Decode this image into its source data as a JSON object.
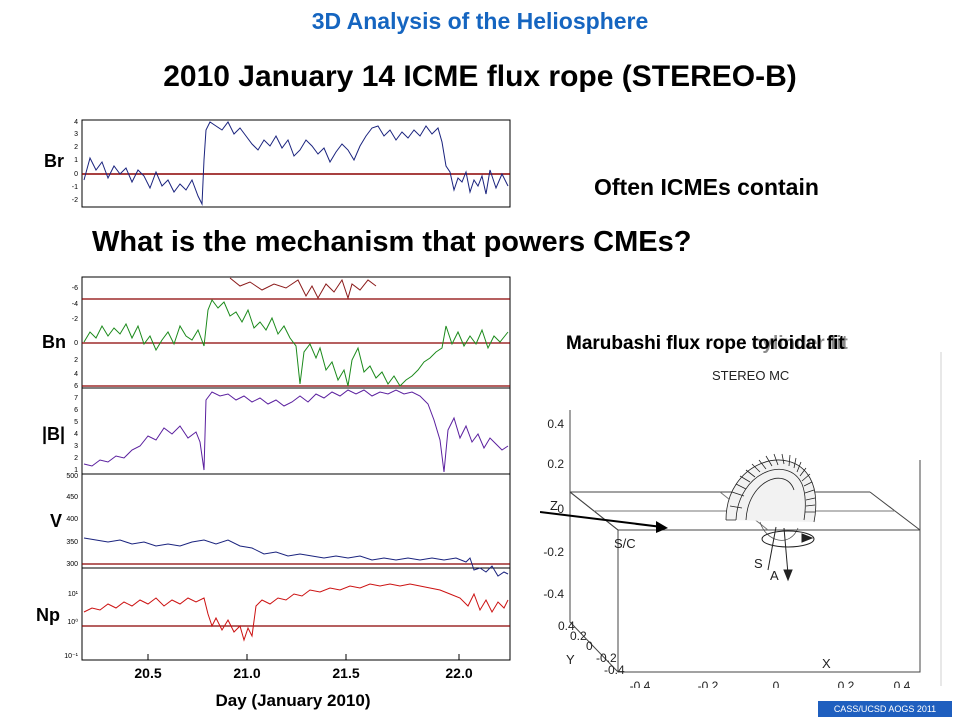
{
  "header": "3D Analysis of the Heliosphere",
  "title": "2010 January 14 ICME flux rope (STEREO-B)",
  "question": "What is the mechanism that powers CMEs?",
  "overlay_text": "Often ICMEs contain",
  "footer": "CASS/UCSD AOGS 2011",
  "fit_captions": [
    "Marubashi flux rope cylinder fit",
    "Marubashi flux rope toroidal fit"
  ],
  "colors": {
    "header": "#1565c0",
    "footer_bg": "#1f5fbf",
    "zero_line": "#8b0000",
    "Br": "#1a237e",
    "Bn": "#1b8a1b",
    "B": "#5a1f9e",
    "V": "#1a237e",
    "Np": "#cc1111"
  },
  "chart_data": [
    {
      "type": "line",
      "title": "",
      "xlabel": "Day (January 2010)",
      "x_ticks": [
        "20.5",
        "21.0",
        "21.5",
        "22.0"
      ],
      "xlim": [
        20.25,
        22.2
      ],
      "panels": [
        {
          "name": "Br",
          "y_ticks": [
            "4",
            "3",
            "2",
            "1",
            "0",
            "-1",
            "-2"
          ],
          "ylim": [
            -2.5,
            4.2
          ]
        },
        {
          "name": "Bn",
          "y_ticks": [
            "-6",
            "-4",
            "-2",
            "0",
            "2",
            "4",
            "6"
          ],
          "ylim": [
            -6.5,
            6.5
          ]
        },
        {
          "name": "|B|",
          "y_ticks": [
            "7",
            "6",
            "5",
            "4",
            "3",
            "2",
            "1"
          ],
          "ylim": [
            0,
            7.5
          ]
        },
        {
          "name": "V",
          "y_ticks": [
            "500",
            "450",
            "400",
            "350",
            "300"
          ],
          "ylim": [
            280,
            510
          ]
        },
        {
          "name": "Np",
          "y_ticks": [
            "10¹",
            "10⁰",
            "10⁻¹"
          ],
          "ylim": [
            -1,
            1
          ]
        }
      ]
    },
    {
      "type": "3d-diagram",
      "title": "STEREO MC",
      "z_label": "Z",
      "z_ticks": [
        "0.4",
        "0.2",
        "0",
        "-0.2",
        "-0.4"
      ],
      "y_label": "Y",
      "y_ticks": [
        "0.4",
        "0.2",
        "0",
        "-0.2",
        "-0.4"
      ],
      "x_label": "X",
      "x_ticks": [
        "-0.4",
        "-0.2",
        "0",
        "0.2",
        "0.4"
      ],
      "annotations": [
        "S/C",
        "S",
        "A"
      ]
    }
  ]
}
